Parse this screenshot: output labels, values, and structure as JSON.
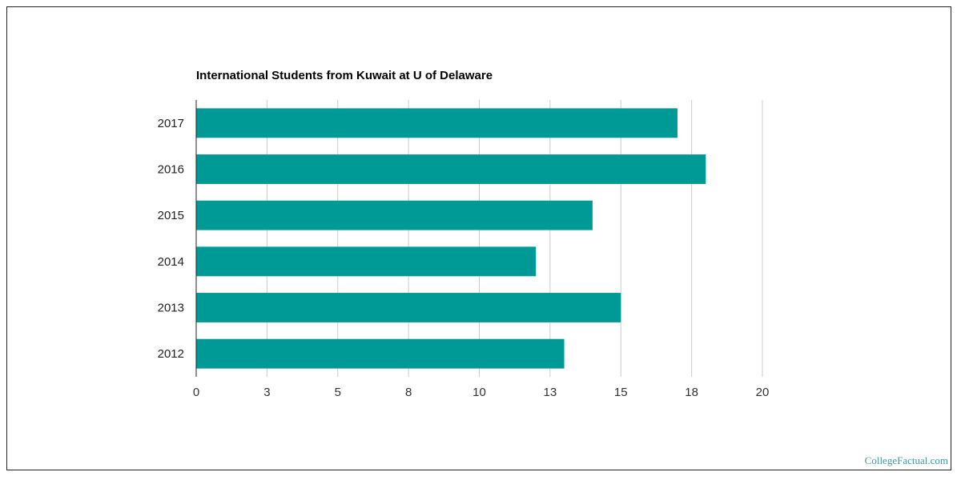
{
  "colors": {
    "bar": "#009a96",
    "grid": "#cccccc",
    "axis": "#222222"
  },
  "watermark": "CollegeFactual.com",
  "chart_data": {
    "type": "bar",
    "orientation": "horizontal",
    "title": "International Students from Kuwait at U of Delaware",
    "xlabel": "",
    "ylabel": "",
    "categories": [
      "2017",
      "2016",
      "2015",
      "2014",
      "2013",
      "2012"
    ],
    "values": [
      17,
      18,
      14,
      12,
      15,
      13
    ],
    "xlim": [
      0,
      20
    ],
    "x_ticks": [
      0,
      2.5,
      5,
      7.5,
      10,
      12.5,
      15,
      17.5,
      20
    ],
    "x_tick_labels": [
      "0",
      "3",
      "5",
      "8",
      "10",
      "13",
      "15",
      "18",
      "20"
    ],
    "grid": true,
    "legend": "none"
  }
}
